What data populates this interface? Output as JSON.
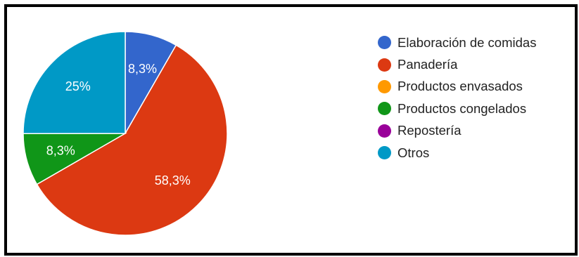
{
  "chart_data": {
    "type": "pie",
    "categories": [
      "Elaboración de comidas",
      "Panadería",
      "Productos envasados",
      "Productos congelados",
      "Repostería",
      "Otros"
    ],
    "values": [
      8.3,
      58.3,
      0,
      8.3,
      0,
      25
    ],
    "slice_labels": [
      "8,3%",
      "58,3%",
      "",
      "8,3%",
      "",
      "25%"
    ],
    "colors": [
      "#3366cc",
      "#dc3912",
      "#ff9900",
      "#109618",
      "#990099",
      "#0099c6"
    ],
    "legend_position": "right",
    "start_angle": "top, clockwise",
    "title": ""
  }
}
